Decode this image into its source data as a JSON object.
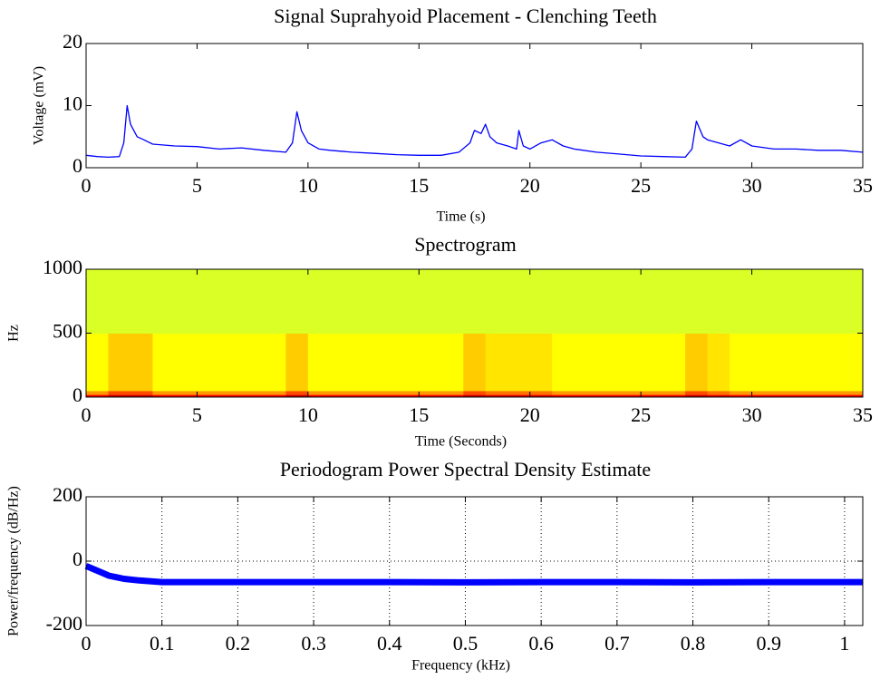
{
  "chart_data": [
    {
      "type": "line",
      "title": "Signal Suprahyoid Placement - Clenching Teeth",
      "xlabel": "Time (s)",
      "ylabel": "Voltage (mV)",
      "xlim": [
        0,
        35
      ],
      "xticks": [
        0,
        5,
        10,
        15,
        20,
        25,
        30,
        35
      ],
      "ylim": [
        0,
        20
      ],
      "yticks": [
        0,
        10,
        20
      ],
      "grid": false,
      "series": [
        {
          "color": "#0000ff",
          "x": [
            0,
            0.5,
            1,
            1.5,
            1.7,
            1.85,
            2,
            2.3,
            2.6,
            3,
            4,
            5,
            6,
            7,
            8,
            9,
            9.3,
            9.5,
            9.7,
            10,
            10.5,
            11,
            12,
            13,
            14,
            15,
            16,
            16.8,
            17.3,
            17.5,
            17.8,
            18,
            18.2,
            18.5,
            19,
            19.4,
            19.5,
            19.7,
            20,
            20.5,
            21,
            21.5,
            22,
            23,
            24,
            25,
            26,
            27,
            27.3,
            27.5,
            27.8,
            28,
            28.5,
            29,
            29.5,
            30,
            31,
            32,
            33,
            34,
            35
          ],
          "values": [
            2,
            1.8,
            1.7,
            1.8,
            4,
            10,
            7,
            5,
            4.5,
            3.8,
            3.5,
            3.4,
            3,
            3.2,
            2.8,
            2.5,
            4,
            9,
            6,
            4,
            3,
            2.8,
            2.5,
            2.3,
            2.1,
            2,
            2,
            2.5,
            4,
            6,
            5.5,
            7,
            5,
            4,
            3.5,
            3,
            6,
            3.5,
            3,
            4,
            4.5,
            3.5,
            3,
            2.5,
            2.2,
            1.9,
            1.8,
            1.7,
            3,
            7.5,
            5,
            4.5,
            4,
            3.5,
            4.5,
            3.5,
            3,
            3,
            2.8,
            2.8,
            2.5
          ]
        }
      ]
    },
    {
      "type": "heatmap",
      "title": "Spectrogram",
      "xlabel": "Time (Seconds)",
      "ylabel": "Hz",
      "xlim": [
        0,
        35
      ],
      "xticks": [
        0,
        5,
        10,
        15,
        20,
        25,
        30,
        35
      ],
      "ylim": [
        0,
        1000
      ],
      "yticks": [
        0,
        500,
        1000
      ],
      "colormap": "jet",
      "clim": [
        -80,
        0
      ],
      "xbins": [
        0,
        1,
        2,
        3,
        4,
        5,
        6,
        7,
        8,
        9,
        10,
        11,
        12,
        13,
        14,
        15,
        16,
        17,
        18,
        19,
        20,
        21,
        22,
        23,
        24,
        25,
        26,
        27,
        28,
        29,
        30,
        31,
        32,
        33,
        34,
        35
      ],
      "ybins": [
        0,
        20,
        50,
        500,
        1000
      ],
      "values": [
        [
          -10,
          -6,
          -6,
          -10,
          -10,
          -10,
          -10,
          -10,
          -10,
          -6,
          -10,
          -10,
          -10,
          -10,
          -10,
          -10,
          -10,
          -6,
          -8,
          -8,
          -8,
          -10,
          -10,
          -10,
          -10,
          -10,
          -10,
          -6,
          -8,
          -10,
          -10,
          -10,
          -10,
          -10,
          -10
        ],
        [
          -22,
          -16,
          -16,
          -22,
          -22,
          -22,
          -22,
          -22,
          -22,
          -16,
          -22,
          -22,
          -22,
          -22,
          -22,
          -22,
          -22,
          -16,
          -19,
          -19,
          -19,
          -22,
          -22,
          -22,
          -22,
          -22,
          -22,
          -16,
          -19,
          -22,
          -22,
          -22,
          -22,
          -22,
          -22
        ],
        [
          -30,
          -26,
          -26,
          -30,
          -30,
          -30,
          -30,
          -30,
          -30,
          -26,
          -30,
          -30,
          -30,
          -30,
          -30,
          -30,
          -30,
          -26,
          -28,
          -28,
          -28,
          -30,
          -30,
          -30,
          -30,
          -30,
          -30,
          -26,
          -28,
          -30,
          -30,
          -30,
          -30,
          -30,
          -30
        ],
        [
          -33,
          -33,
          -33,
          -33,
          -33,
          -33,
          -33,
          -33,
          -33,
          -33,
          -33,
          -33,
          -33,
          -33,
          -33,
          -33,
          -33,
          -33,
          -33,
          -33,
          -33,
          -33,
          -33,
          -33,
          -33,
          -33,
          -33,
          -33,
          -33,
          -33,
          -33,
          -33,
          -33,
          -33,
          -33
        ]
      ]
    },
    {
      "type": "line",
      "title": "Periodogram Power Spectral Density Estimate",
      "xlabel": "Frequency (kHz)",
      "ylabel": "Power/frequency (dB/Hz)",
      "xlim": [
        0,
        1.024
      ],
      "xticks": [
        0,
        0.1,
        0.2,
        0.3,
        0.4,
        0.5,
        0.6,
        0.7,
        0.8,
        0.9,
        1
      ],
      "ylim": [
        -200,
        200
      ],
      "yticks": [
        -200,
        0,
        200
      ],
      "grid": true,
      "series": [
        {
          "color": "#0000ff",
          "x": [
            0,
            0.01,
            0.02,
            0.03,
            0.05,
            0.07,
            0.1,
            0.2,
            0.3,
            0.4,
            0.5,
            0.6,
            0.7,
            0.8,
            0.9,
            1,
            1.024
          ],
          "values": [
            -15,
            -25,
            -35,
            -45,
            -55,
            -60,
            -65,
            -65,
            -65,
            -65,
            -66,
            -65,
            -65,
            -66,
            -65,
            -65,
            -65
          ]
        }
      ]
    }
  ]
}
